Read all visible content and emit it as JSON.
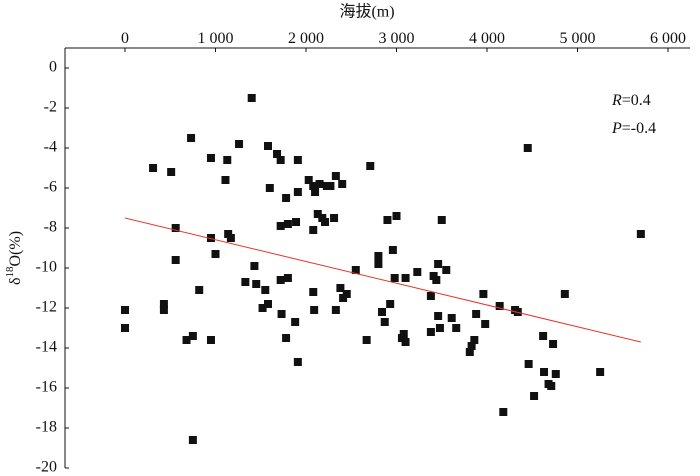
{
  "chart_data": {
    "type": "scatter",
    "x_label": "海拔(m)",
    "y_label": {
      "prefix": "δ",
      "sup": "18",
      "suffix": "O(%)"
    },
    "annotations": [
      {
        "var": "R",
        "text": "=0.4"
      },
      {
        "var": "P",
        "text": "=-0.4"
      }
    ],
    "xlim": [
      -663,
      6243
    ],
    "ylim": [
      -20,
      1
    ],
    "xticks": [
      0,
      {
        "value": 1000,
        "label": "1 000"
      },
      {
        "value": 2000,
        "label": "2 000"
      },
      {
        "value": 3000,
        "label": "3 000"
      },
      {
        "value": 4000,
        "label": "4 000"
      },
      {
        "value": 5000,
        "label": "5 000"
      },
      {
        "value": 6000,
        "label": "6 000"
      }
    ],
    "yticks": [
      0,
      -2,
      -4,
      -6,
      -8,
      -10,
      -12,
      -14,
      -16,
      -18,
      -20
    ],
    "color": "#111111",
    "x": [
      0,
      0,
      310,
      510,
      560,
      560,
      430,
      430,
      730,
      750,
      820,
      750,
      680,
      950,
      950,
      1000,
      950,
      1130,
      1110,
      1140,
      1170,
      1260,
      1330,
      1400,
      1430,
      1450,
      1520,
      1550,
      1580,
      1600,
      1580,
      1680,
      1720,
      1720,
      1720,
      1730,
      1780,
      1800,
      1800,
      1780,
      1910,
      1910,
      1890,
      1910,
      1880,
      2030,
      2080,
      2080,
      2080,
      2090,
      2100,
      2130,
      2150,
      2180,
      2210,
      2230,
      2270,
      2310,
      2330,
      2330,
      2400,
      2380,
      2410,
      2450,
      2550,
      2670,
      2710,
      2800,
      2800,
      2840,
      2870,
      2900,
      2930,
      2960,
      2980,
      3000,
      3060,
      3080,
      3100,
      3100,
      3230,
      3380,
      3380,
      3410,
      3440,
      3460,
      3460,
      3480,
      3500,
      3550,
      3610,
      3660,
      3810,
      3830,
      3860,
      3880,
      3960,
      3980,
      4140,
      4180,
      4310,
      4340,
      4450,
      4460,
      4520,
      4620,
      4630,
      4680,
      4710,
      4730,
      4760,
      4860,
      5250,
      5700
    ],
    "values": [
      -12.1,
      -13.0,
      -5.0,
      -5.2,
      -8.0,
      -9.6,
      -11.8,
      -12.1,
      -3.5,
      -18.6,
      -11.1,
      -13.4,
      -13.6,
      -4.5,
      -8.5,
      -9.3,
      -13.6,
      -4.6,
      -5.6,
      -8.3,
      -8.5,
      -3.8,
      -10.7,
      -1.5,
      -9.9,
      -10.8,
      -12.0,
      -11.1,
      -3.9,
      -6.0,
      -11.8,
      -4.3,
      -4.6,
      -7.9,
      -10.6,
      -12.3,
      -6.5,
      -7.8,
      -10.5,
      -13.5,
      -4.6,
      -6.2,
      -7.7,
      -14.7,
      -12.7,
      -5.6,
      -5.9,
      -8.1,
      -11.2,
      -12.1,
      -6.2,
      -7.3,
      -5.8,
      -7.5,
      -7.7,
      -5.9,
      -5.9,
      -7.5,
      -5.4,
      -12.1,
      -5.8,
      -11.0,
      -11.5,
      -11.3,
      -10.1,
      -13.6,
      -4.9,
      -9.8,
      -9.4,
      -12.2,
      -12.7,
      -7.6,
      -11.8,
      -9.1,
      -10.5,
      -7.4,
      -13.5,
      -13.3,
      -13.7,
      -10.5,
      -10.2,
      -11.4,
      -13.2,
      -10.4,
      -10.6,
      -9.8,
      -12.4,
      -13.0,
      -7.6,
      -10.1,
      -12.5,
      -13.0,
      -14.2,
      -13.9,
      -13.6,
      -12.3,
      -11.3,
      -12.8,
      -11.9,
      -17.2,
      -12.1,
      -12.2,
      -4.0,
      -14.8,
      -16.4,
      -13.4,
      -15.2,
      -15.8,
      -15.9,
      -13.8,
      -15.3,
      -11.3,
      -15.2,
      -8.3
    ],
    "trendline": {
      "x": [
        0,
        5700
      ],
      "values": [
        -7.5,
        -13.7
      ],
      "color": "#e8332a"
    }
  }
}
